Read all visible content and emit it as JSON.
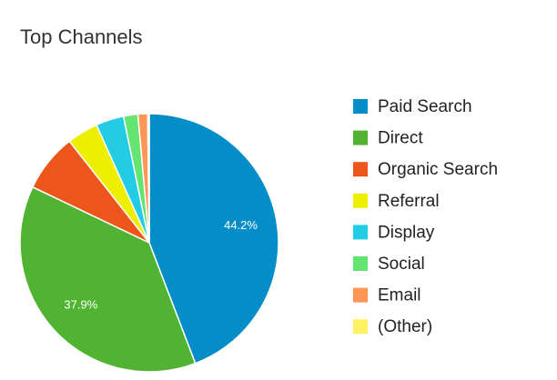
{
  "chart_data": {
    "type": "pie",
    "title": "Top Channels",
    "categories": [
      "Paid Search",
      "Direct",
      "Organic Search",
      "Referral",
      "Display",
      "Social",
      "Email",
      "(Other)"
    ],
    "values": [
      44.2,
      37.9,
      7.3,
      3.9,
      3.5,
      1.8,
      1.2,
      0.2
    ],
    "value_labels": [
      "44.2%",
      "37.9%",
      null,
      null,
      null,
      null,
      null,
      null
    ],
    "colors": [
      "#058dc7",
      "#50b432",
      "#ed561b",
      "#edef00",
      "#24cbe5",
      "#64e572",
      "#ff9655",
      "#fff263"
    ]
  }
}
